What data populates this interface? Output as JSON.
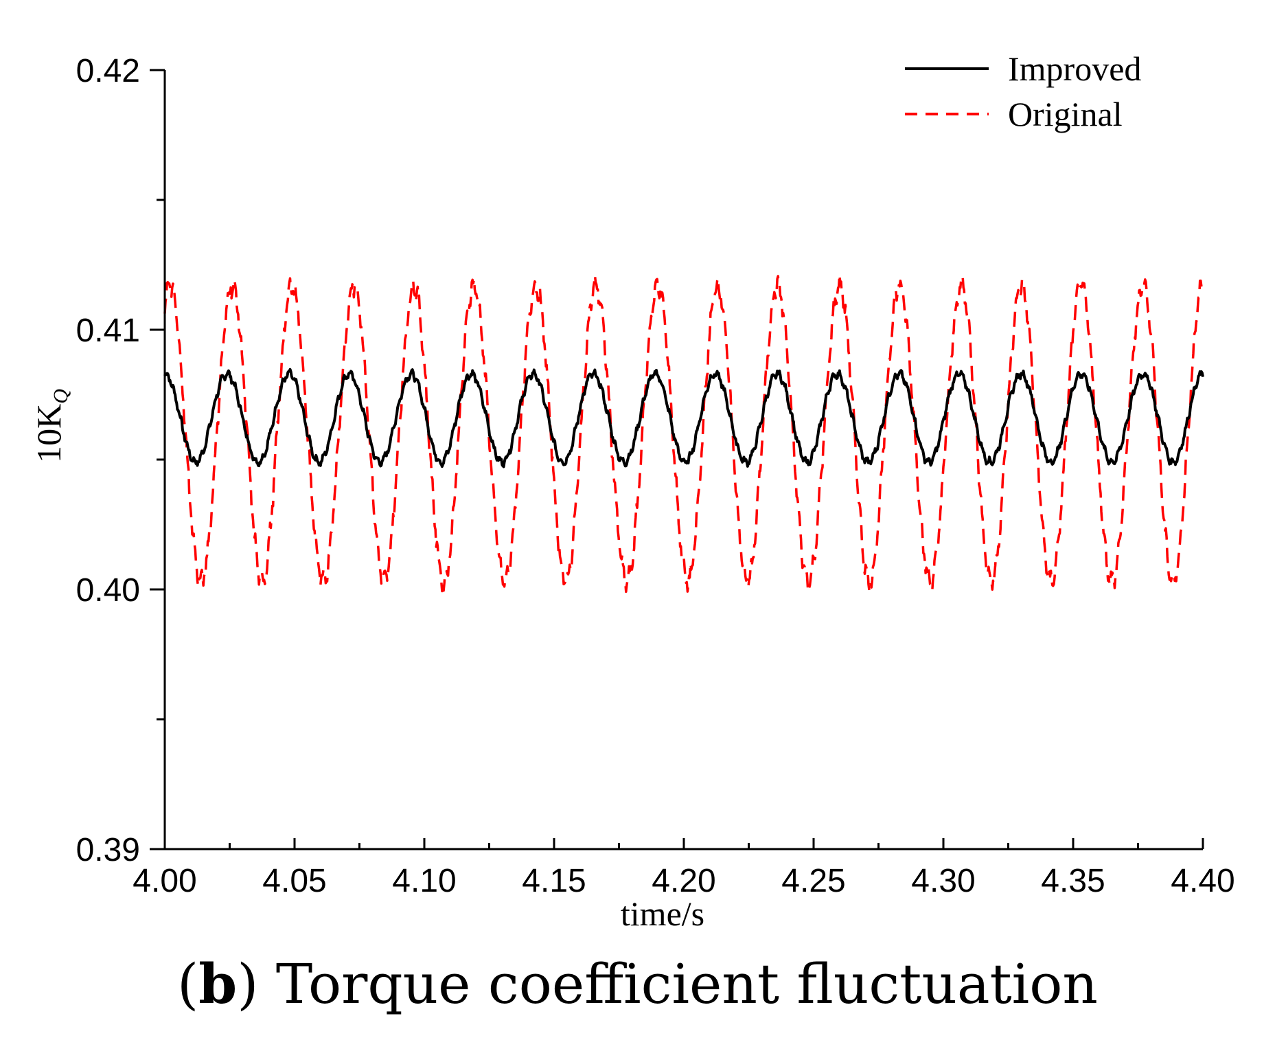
{
  "caption": {
    "prefix": "(",
    "panel": "b",
    "suffix": ")",
    "text": "Torque coefficient fluctuation"
  },
  "chart_data": {
    "type": "line",
    "title": "",
    "xlabel": "time/s",
    "ylabel_base": "10K",
    "ylabel_sub": "Q",
    "xlim": [
      4.0,
      4.4
    ],
    "ylim": [
      0.39,
      0.42
    ],
    "x_ticks": [
      "4.00",
      "4.05",
      "4.10",
      "4.15",
      "4.20",
      "4.25",
      "4.30",
      "4.35",
      "4.40"
    ],
    "y_ticks": [
      "0.39",
      "0.40",
      "0.41",
      "0.42"
    ],
    "legend_position": "top-right",
    "series": [
      {
        "name": "Improved",
        "color": "#000000",
        "style": "solid",
        "mean": 0.4066,
        "amplitude": 0.0017,
        "phase_start": 0.4,
        "peak_times": [
          4.0,
          4.024,
          4.048,
          4.071,
          4.095,
          4.118,
          4.142,
          4.165,
          4.189,
          4.212,
          4.236,
          4.259,
          4.283,
          4.306,
          4.33,
          4.353,
          4.377,
          4.4
        ]
      },
      {
        "name": "Original",
        "color": "#ff0000",
        "style": "dashed",
        "mean": 0.406,
        "amplitude": 0.0057,
        "peak_times": [
          4.002,
          4.026,
          4.049,
          4.073,
          4.096,
          4.119,
          4.143,
          4.166,
          4.19,
          4.213,
          4.236,
          4.26,
          4.283,
          4.307,
          4.33,
          4.353,
          4.377,
          4.4
        ],
        "trough_times": [
          4.015,
          4.037,
          4.061,
          4.084,
          4.108,
          4.131,
          4.154,
          4.178,
          4.201,
          4.225,
          4.248,
          4.271,
          4.295,
          4.318,
          4.341,
          4.365,
          4.388
        ]
      }
    ]
  }
}
